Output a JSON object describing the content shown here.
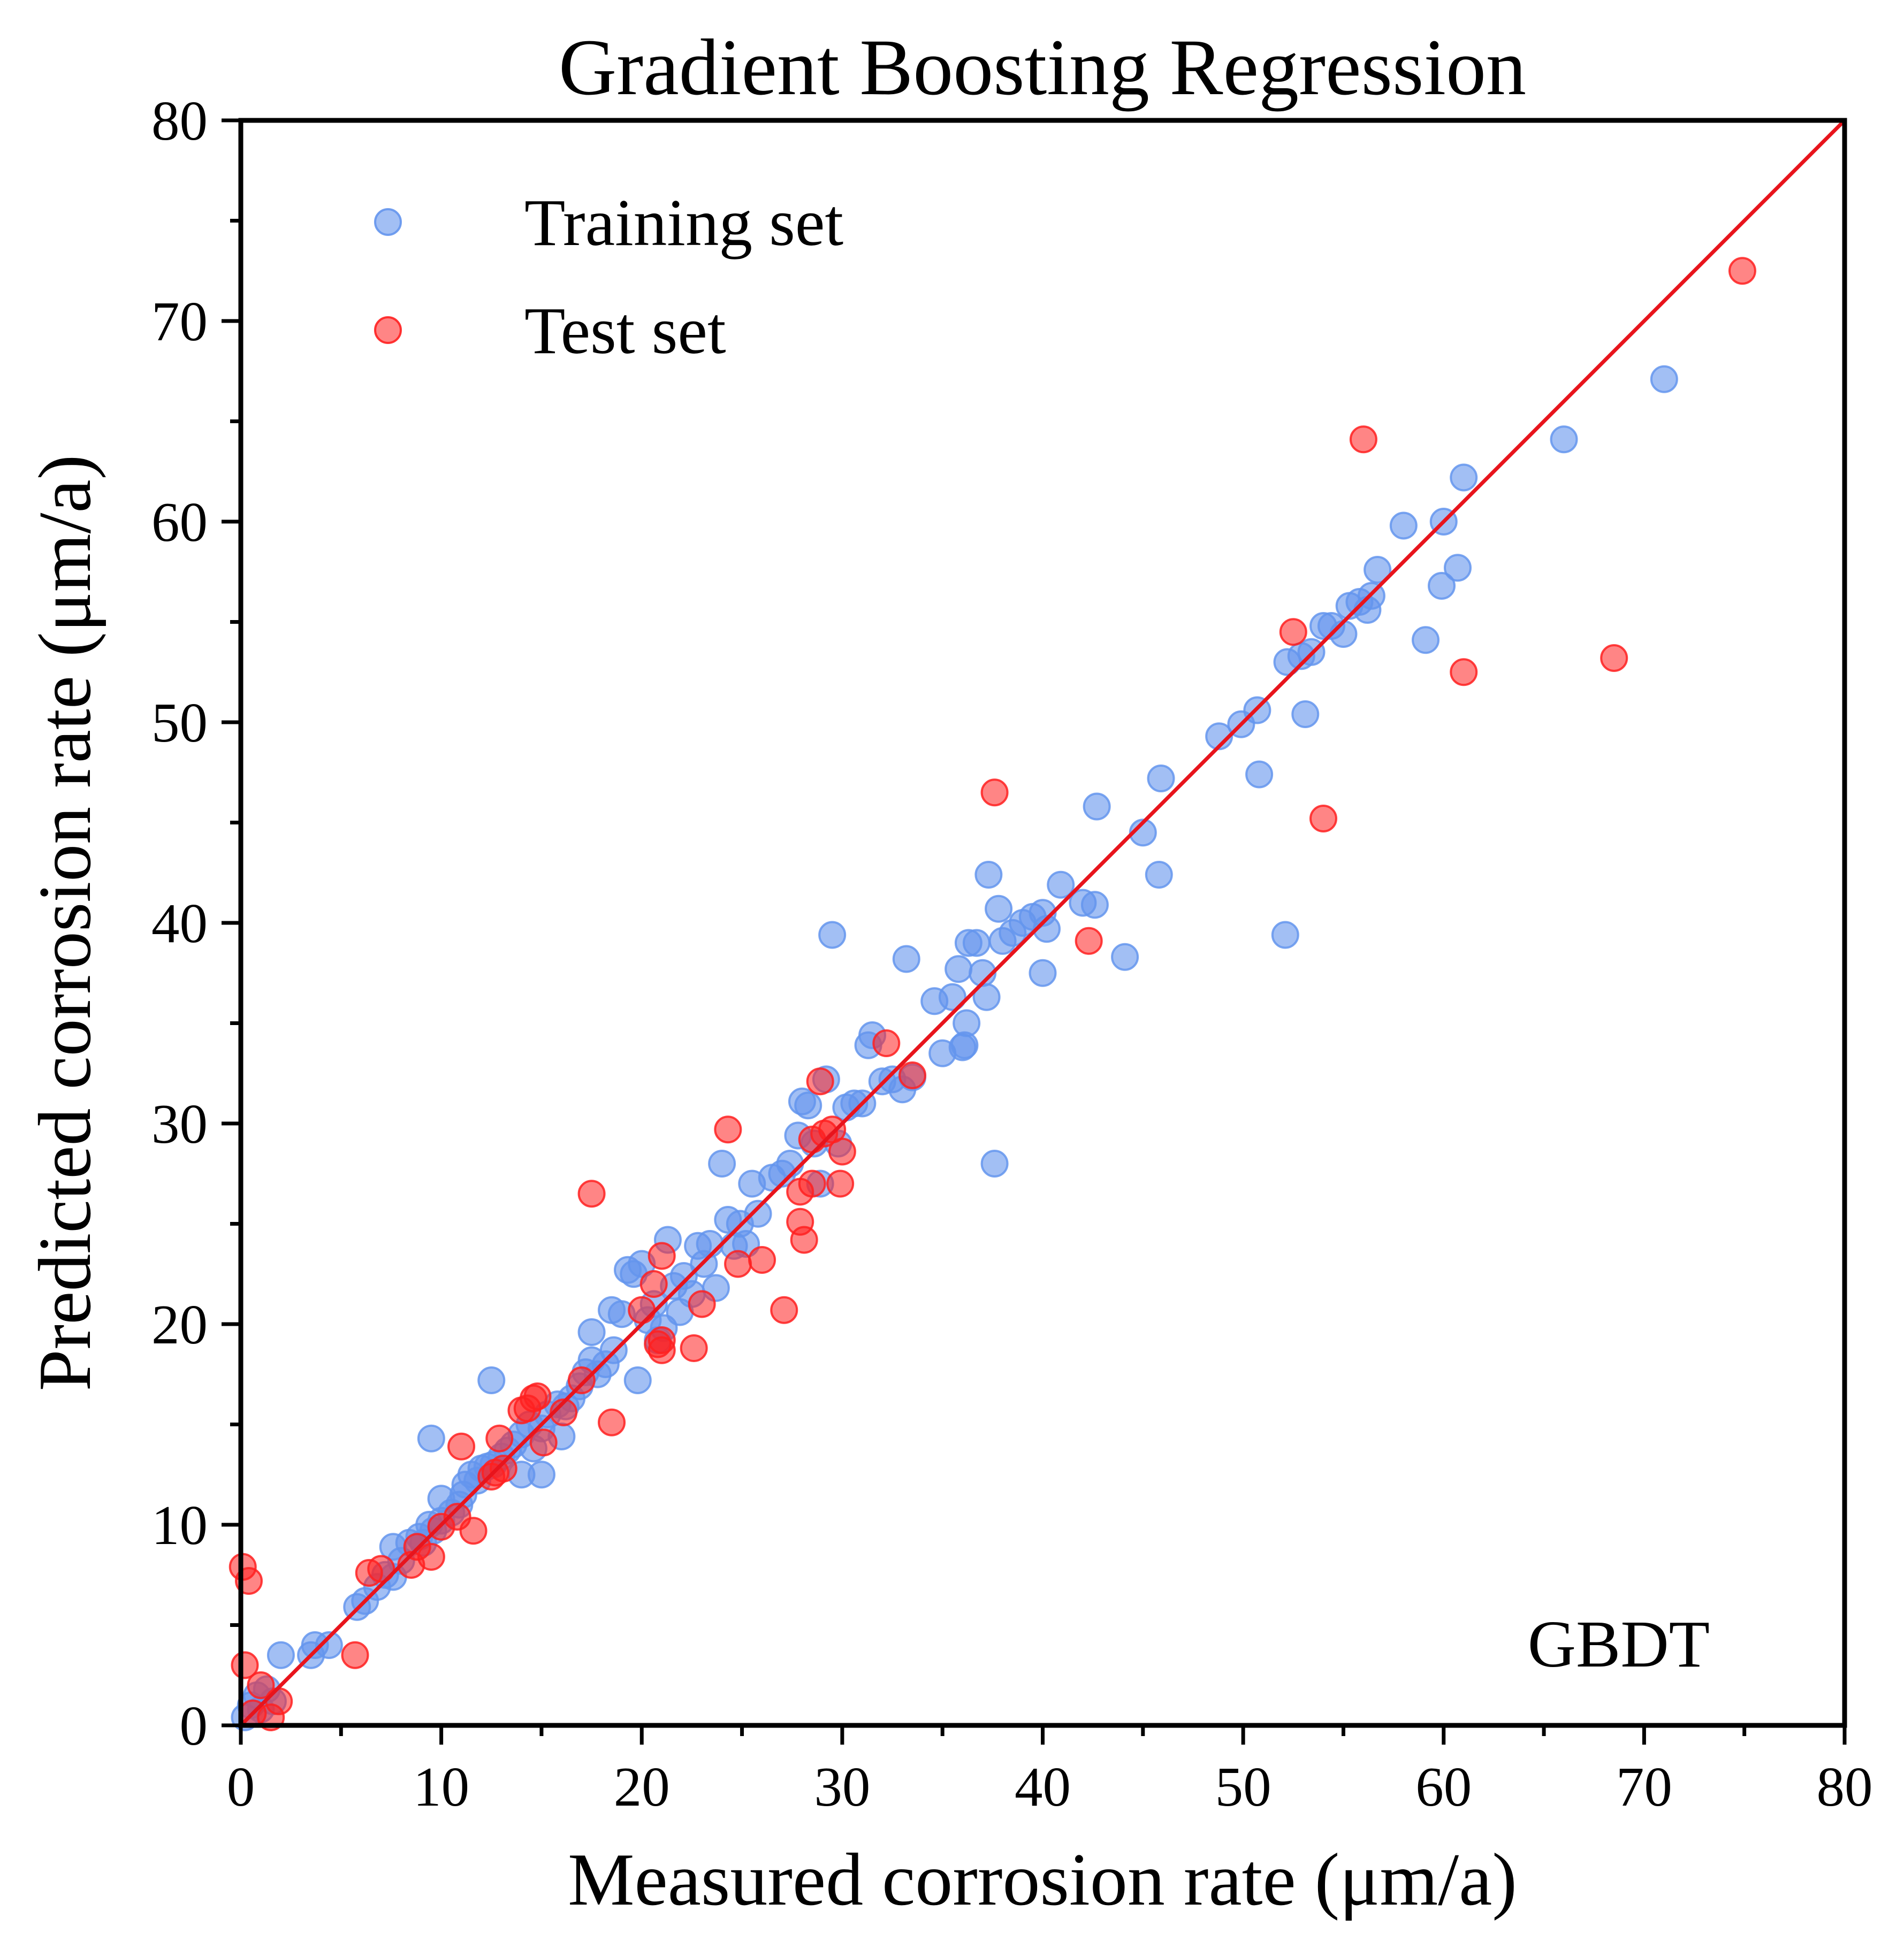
{
  "chart_data": {
    "type": "scatter",
    "title": "Gradient Boosting Regression",
    "xlabel": "Measured corrosion rate (μm/a)",
    "ylabel": "Predicted corrosion rate (μm/a)",
    "xlim": [
      0,
      80
    ],
    "ylim": [
      0,
      80
    ],
    "xticks": [
      "0",
      "10",
      "20",
      "30",
      "40",
      "50",
      "60",
      "70",
      "80"
    ],
    "yticks": [
      "0",
      "10",
      "20",
      "30",
      "40",
      "50",
      "60",
      "70",
      "80"
    ],
    "grid": false,
    "legend_position": "top-left",
    "annotation": "GBDT",
    "reference_line": {
      "from": [
        0,
        0
      ],
      "to": [
        80,
        80
      ],
      "color": "#e8141c"
    },
    "series": [
      {
        "name": "Training set",
        "color": "#6495ed",
        "points": [
          [
            0.2,
            0.4
          ],
          [
            0.5,
            1.0
          ],
          [
            0.8,
            1.5
          ],
          [
            1.0,
            0.8
          ],
          [
            1.3,
            1.8
          ],
          [
            1.6,
            1.2
          ],
          [
            2.0,
            3.5
          ],
          [
            3.5,
            3.5
          ],
          [
            3.7,
            4.0
          ],
          [
            4.4,
            4.0
          ],
          [
            5.8,
            5.9
          ],
          [
            6.2,
            6.2
          ],
          [
            6.8,
            6.9
          ],
          [
            7.2,
            7.5
          ],
          [
            7.6,
            7.4
          ],
          [
            7.6,
            8.9
          ],
          [
            8.0,
            8.2
          ],
          [
            8.4,
            9.1
          ],
          [
            8.9,
            9.4
          ],
          [
            9.1,
            9.1
          ],
          [
            9.4,
            10.0
          ],
          [
            9.6,
            9.7
          ],
          [
            10.0,
            10.2
          ],
          [
            10.0,
            11.3
          ],
          [
            10.5,
            10.6
          ],
          [
            10.9,
            11.0
          ],
          [
            11.1,
            11.5
          ],
          [
            11.2,
            12.0
          ],
          [
            11.5,
            12.5
          ],
          [
            11.8,
            12.2
          ],
          [
            12.0,
            12.8
          ],
          [
            12.3,
            12.9
          ],
          [
            12.6,
            13.0
          ],
          [
            13.0,
            13.4
          ],
          [
            13.3,
            13.7
          ],
          [
            13.6,
            14.0
          ],
          [
            14.0,
            14.5
          ],
          [
            14.4,
            15.0
          ],
          [
            14.6,
            13.8
          ],
          [
            15.0,
            14.8
          ],
          [
            15.3,
            15.5
          ],
          [
            15.8,
            16.0
          ],
          [
            16.2,
            15.9
          ],
          [
            16.5,
            16.3
          ],
          [
            16.9,
            16.9
          ],
          [
            17.2,
            17.6
          ],
          [
            17.5,
            18.2
          ],
          [
            17.8,
            17.5
          ],
          [
            18.2,
            18.0
          ],
          [
            18.6,
            18.7
          ],
          [
            9.5,
            14.3
          ],
          [
            12.5,
            17.2
          ],
          [
            14.0,
            12.5
          ],
          [
            15.0,
            12.5
          ],
          [
            16.0,
            14.4
          ],
          [
            17.5,
            19.6
          ],
          [
            18.5,
            20.7
          ],
          [
            19.0,
            20.5
          ],
          [
            19.3,
            22.7
          ],
          [
            19.6,
            22.5
          ],
          [
            19.8,
            17.2
          ],
          [
            20.0,
            23.0
          ],
          [
            20.3,
            20.2
          ],
          [
            20.6,
            21.0
          ],
          [
            20.8,
            19.2
          ],
          [
            21.1,
            19.8
          ],
          [
            21.3,
            24.2
          ],
          [
            21.6,
            21.9
          ],
          [
            21.9,
            20.6
          ],
          [
            22.1,
            22.4
          ],
          [
            22.5,
            21.5
          ],
          [
            22.8,
            23.9
          ],
          [
            23.1,
            23.0
          ],
          [
            23.4,
            24.0
          ],
          [
            23.7,
            21.8
          ],
          [
            24.0,
            28.0
          ],
          [
            24.3,
            25.2
          ],
          [
            24.6,
            23.9
          ],
          [
            24.9,
            25.0
          ],
          [
            25.2,
            24.0
          ],
          [
            25.5,
            27.0
          ],
          [
            25.8,
            25.5
          ],
          [
            26.5,
            27.3
          ],
          [
            27.0,
            27.5
          ],
          [
            27.4,
            28.0
          ],
          [
            27.8,
            29.4
          ],
          [
            28.0,
            31.1
          ],
          [
            28.3,
            30.9
          ],
          [
            28.6,
            29.0
          ],
          [
            28.9,
            27.0
          ],
          [
            29.2,
            32.2
          ],
          [
            29.5,
            39.4
          ],
          [
            29.8,
            29.0
          ],
          [
            30.2,
            30.8
          ],
          [
            30.6,
            31.0
          ],
          [
            31.0,
            31.0
          ],
          [
            31.3,
            33.9
          ],
          [
            31.5,
            34.4
          ],
          [
            32.0,
            32.1
          ],
          [
            32.5,
            32.2
          ],
          [
            33.0,
            31.7
          ],
          [
            33.2,
            38.2
          ],
          [
            33.5,
            32.3
          ],
          [
            34.6,
            36.1
          ],
          [
            35.0,
            33.5
          ],
          [
            35.5,
            36.3
          ],
          [
            36.0,
            33.8
          ],
          [
            36.1,
            33.9
          ],
          [
            36.2,
            35.0
          ],
          [
            35.8,
            37.7
          ],
          [
            36.3,
            39.0
          ],
          [
            36.7,
            39.0
          ],
          [
            37.0,
            37.5
          ],
          [
            37.2,
            36.3
          ],
          [
            37.3,
            42.4
          ],
          [
            37.6,
            28.0
          ],
          [
            37.8,
            40.7
          ],
          [
            38.0,
            39.1
          ],
          [
            38.5,
            39.5
          ],
          [
            39.0,
            40.0
          ],
          [
            39.5,
            40.3
          ],
          [
            40.0,
            40.5
          ],
          [
            40.0,
            37.5
          ],
          [
            40.2,
            39.7
          ],
          [
            40.9,
            41.9
          ],
          [
            42.0,
            41.0
          ],
          [
            42.6,
            40.9
          ],
          [
            42.7,
            45.8
          ],
          [
            44.1,
            38.3
          ],
          [
            45.0,
            44.5
          ],
          [
            45.8,
            42.4
          ],
          [
            45.9,
            47.2
          ],
          [
            48.8,
            49.3
          ],
          [
            49.9,
            49.9
          ],
          [
            50.7,
            50.6
          ],
          [
            50.8,
            47.4
          ],
          [
            52.1,
            39.4
          ],
          [
            52.2,
            53.0
          ],
          [
            52.9,
            53.3
          ],
          [
            53.1,
            50.4
          ],
          [
            53.4,
            53.5
          ],
          [
            54.0,
            54.8
          ],
          [
            54.4,
            54.8
          ],
          [
            55.0,
            54.4
          ],
          [
            55.3,
            55.8
          ],
          [
            55.8,
            56.0
          ],
          [
            56.2,
            55.6
          ],
          [
            56.4,
            56.3
          ],
          [
            56.7,
            57.6
          ],
          [
            58.0,
            59.8
          ],
          [
            59.1,
            54.1
          ],
          [
            59.9,
            56.8
          ],
          [
            60.0,
            60.0
          ],
          [
            60.7,
            57.7
          ],
          [
            61.0,
            62.2
          ],
          [
            66.0,
            64.1
          ],
          [
            71.0,
            67.1
          ]
        ]
      },
      {
        "name": "Test set",
        "color": "#ff2020",
        "points": [
          [
            0.1,
            7.9
          ],
          [
            0.4,
            7.2
          ],
          [
            0.2,
            3.0
          ],
          [
            0.6,
            0.6
          ],
          [
            1.0,
            2.0
          ],
          [
            1.5,
            0.4
          ],
          [
            1.9,
            1.2
          ],
          [
            5.7,
            3.5
          ],
          [
            6.4,
            7.6
          ],
          [
            7.0,
            7.8
          ],
          [
            8.5,
            8.0
          ],
          [
            8.8,
            8.9
          ],
          [
            9.5,
            8.4
          ],
          [
            10.0,
            9.9
          ],
          [
            10.8,
            10.4
          ],
          [
            11.0,
            13.9
          ],
          [
            11.6,
            9.7
          ],
          [
            12.5,
            12.4
          ],
          [
            12.7,
            12.6
          ],
          [
            12.9,
            14.3
          ],
          [
            13.1,
            12.8
          ],
          [
            14.0,
            15.7
          ],
          [
            14.3,
            15.8
          ],
          [
            14.6,
            16.3
          ],
          [
            14.8,
            16.4
          ],
          [
            15.1,
            14.1
          ],
          [
            16.1,
            15.6
          ],
          [
            17.0,
            17.2
          ],
          [
            17.5,
            26.5
          ],
          [
            18.5,
            15.1
          ],
          [
            20.0,
            20.7
          ],
          [
            20.6,
            22.0
          ],
          [
            20.8,
            19.0
          ],
          [
            21.0,
            23.4
          ],
          [
            21.0,
            19.2
          ],
          [
            21.0,
            18.7
          ],
          [
            22.6,
            18.8
          ],
          [
            23.0,
            21.0
          ],
          [
            24.3,
            29.7
          ],
          [
            24.8,
            23.0
          ],
          [
            26.0,
            23.2
          ],
          [
            27.1,
            20.7
          ],
          [
            27.9,
            25.1
          ],
          [
            27.9,
            26.6
          ],
          [
            28.1,
            24.2
          ],
          [
            28.5,
            27.0
          ],
          [
            28.5,
            29.2
          ],
          [
            28.9,
            32.1
          ],
          [
            29.1,
            29.5
          ],
          [
            29.5,
            29.7
          ],
          [
            29.9,
            27.0
          ],
          [
            30.0,
            28.6
          ],
          [
            32.2,
            34.0
          ],
          [
            33.5,
            32.4
          ],
          [
            37.6,
            46.5
          ],
          [
            42.3,
            39.1
          ],
          [
            52.5,
            54.5
          ],
          [
            54.0,
            45.2
          ],
          [
            56.0,
            64.1
          ],
          [
            61.0,
            52.5
          ],
          [
            68.5,
            53.2
          ],
          [
            74.9,
            72.5
          ]
        ]
      }
    ]
  }
}
